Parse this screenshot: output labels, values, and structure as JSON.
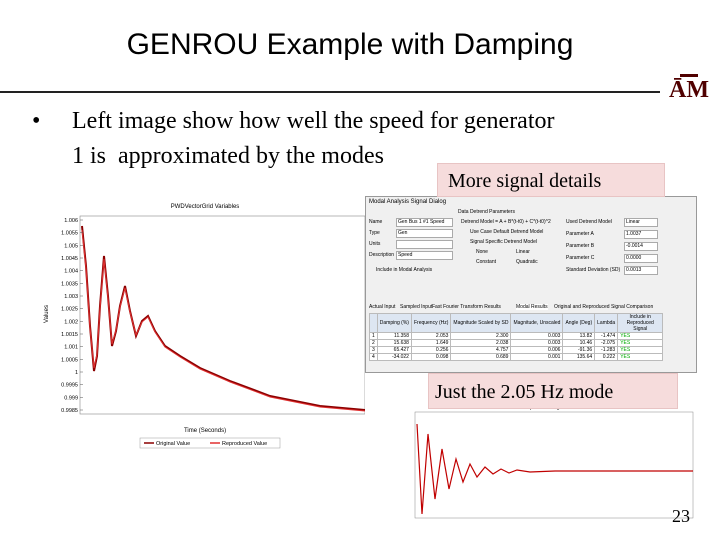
{
  "header": {
    "title": "GENROU Example with Damping"
  },
  "bullet": {
    "lines": [
      "Left image show how well the speed for generator",
      "1 is  approximated by the modes"
    ]
  },
  "callouts": [
    "More signal details",
    "Just the 2.05 Hz mode"
  ],
  "page_number": "23",
  "left_plot": {
    "title": "PWDVectorGrid Variables",
    "y_label": "Values",
    "x_label": "Time (Seconds)",
    "yticks": [
      "1.006",
      "1.0055",
      "1.005",
      "1.0045",
      "1.004",
      "1.0035",
      "1.003",
      "1.0025",
      "1.002",
      "1.0015",
      "1.001",
      "1.0005",
      "1",
      "0.9995",
      "0.999",
      "0.9985"
    ],
    "legend": [
      "Original Value",
      "Reproduced Value"
    ]
  },
  "dialog": {
    "title": "Modal Analysis Signal Dialog",
    "fields": [
      [
        "Name",
        "Gen Bus 1 #1 Speed"
      ],
      [
        "Type",
        "Gen"
      ],
      [
        "Units",
        ""
      ],
      [
        "Description",
        "Speed"
      ]
    ],
    "include": "Include in Modal Analysis",
    "detrend_title": "Data Detrend Parameters",
    "detrend_model": "Detrend Model = A + B*(t-t0) + C*(t-t0)^2",
    "used_label": "Used Detrend Model",
    "used_value": "Linear",
    "default_option": "Use Case Default Detrend Model",
    "specific_option": "Signal Specific Detrend Model",
    "options": [
      "None",
      "Linear",
      "Constant",
      "Quadratic"
    ],
    "parameters": [
      [
        "Parameter A",
        "1.0037"
      ],
      [
        "Parameter B",
        "-0.0014"
      ],
      [
        "Parameter C",
        "0.0000"
      ],
      [
        "Standard Deviation (SD)",
        "0.0013"
      ]
    ],
    "tabs": [
      "Actual Input",
      "Sampled Input",
      "Fast Fourier Transform Results",
      "Modal Results",
      "Original and Reproduced Signal Comparison"
    ],
    "table": {
      "headers": [
        "",
        "Damping (%)",
        "Frequency (Hz)",
        "Magnitude Scaled by SD",
        "Magnitude, Unscaled",
        "Angle (Deg)",
        "Lambda",
        "Include in Reproduced Signal"
      ],
      "rows": [
        [
          "1",
          "11.358",
          "2.053",
          "2.300",
          "0.003",
          "13.82",
          "-1.474",
          "YES"
        ],
        [
          "2",
          "15.638",
          "1.649",
          "2.038",
          "0.003",
          "10.46",
          "-2.075",
          "YES"
        ],
        [
          "3",
          "65.427",
          "0.256",
          "4.757",
          "0.006",
          "-91.36",
          "-1.283",
          "YES"
        ],
        [
          "4",
          "-34.022",
          "0.098",
          "0.689",
          "0.001",
          "135.64",
          "0.222",
          "YES"
        ]
      ]
    }
  },
  "bottom_plot": {
    "title": "Reproduced Signal"
  }
}
